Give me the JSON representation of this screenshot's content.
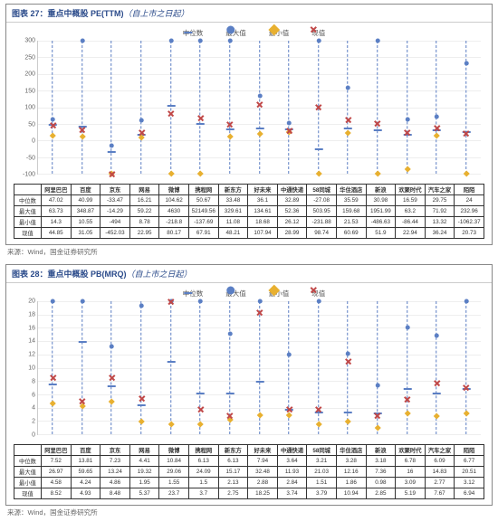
{
  "source_text": "来源：Wind，国金证券研究所",
  "legend": {
    "median": "中位数",
    "max": "最大值",
    "min": "最小值",
    "current": "现值"
  },
  "colors": {
    "line": "#5b7fc4",
    "median": "#5b7fc4",
    "max": "#5b7fc4",
    "min": "#e8b030",
    "current": "#c04848",
    "grid": "#eeeeee",
    "axis": "#cccccc",
    "title": "#2a4a8a"
  },
  "categories": [
    "阿里巴巴",
    "百度",
    "京东",
    "网易",
    "微博",
    "携程网",
    "新东方",
    "好未来",
    "中通快递",
    "58同城",
    "华住酒店",
    "新浪",
    "欢聚时代",
    "汽车之家",
    "陌陌"
  ],
  "row_labels": [
    "中位数",
    "最大值",
    "最小值",
    "现值"
  ],
  "charts": [
    {
      "title_prefix": "图表 27：",
      "title_main": "重点中概股 PE(TTM)",
      "title_sub": "（自上市之日起）",
      "ylim": [
        -100,
        300
      ],
      "ytick_step": 50,
      "rows": [
        [
          47.02,
          40.99,
          -33.47,
          16.21,
          104.62,
          50.67,
          33.48,
          36.1,
          32.89,
          -27.08,
          35.59,
          30.98,
          16.59,
          29.75,
          24.0
        ],
        [
          63.73,
          348.87,
          -14.29,
          59.22,
          4630.0,
          52149.56,
          329.61,
          134.61,
          52.36,
          503.95,
          159.68,
          1951.99,
          63.2,
          71.92,
          232.96
        ],
        [
          14.3,
          10.55,
          -494.0,
          8.78,
          -218.8,
          -137.69,
          11.08,
          18.68,
          26.12,
          -231.88,
          21.53,
          -486.63,
          -86.44,
          13.32,
          -1062.37
        ],
        [
          44.85,
          31.05,
          -452.03,
          22.95,
          80.17,
          67.91,
          48.21,
          107.94,
          28.99,
          98.74,
          60.69,
          51.9,
          22.94,
          36.24,
          20.73
        ]
      ]
    },
    {
      "title_prefix": "图表 28：",
      "title_main": "重点中概股 PB(MRQ)",
      "title_sub": "（自上市之日起）",
      "ylim": [
        0,
        20
      ],
      "ytick_step": 2,
      "rows": [
        [
          7.52,
          13.81,
          7.23,
          4.41,
          10.84,
          6.13,
          6.13,
          7.94,
          3.64,
          3.21,
          3.28,
          3.18,
          6.78,
          6.09,
          6.77
        ],
        [
          26.97,
          59.65,
          13.24,
          19.32,
          29.06,
          24.09,
          15.17,
          32.48,
          11.93,
          21.03,
          12.16,
          7.36,
          16.0,
          14.83,
          20.51
        ],
        [
          4.58,
          4.24,
          4.86,
          1.95,
          1.55,
          1.5,
          2.13,
          2.88,
          2.84,
          1.51,
          1.86,
          0.98,
          3.09,
          2.77,
          3.12
        ],
        [
          8.52,
          4.93,
          8.48,
          5.37,
          23.7,
          3.7,
          2.75,
          18.25,
          3.74,
          3.79,
          10.94,
          2.85,
          5.19,
          7.67,
          6.94
        ]
      ]
    }
  ]
}
